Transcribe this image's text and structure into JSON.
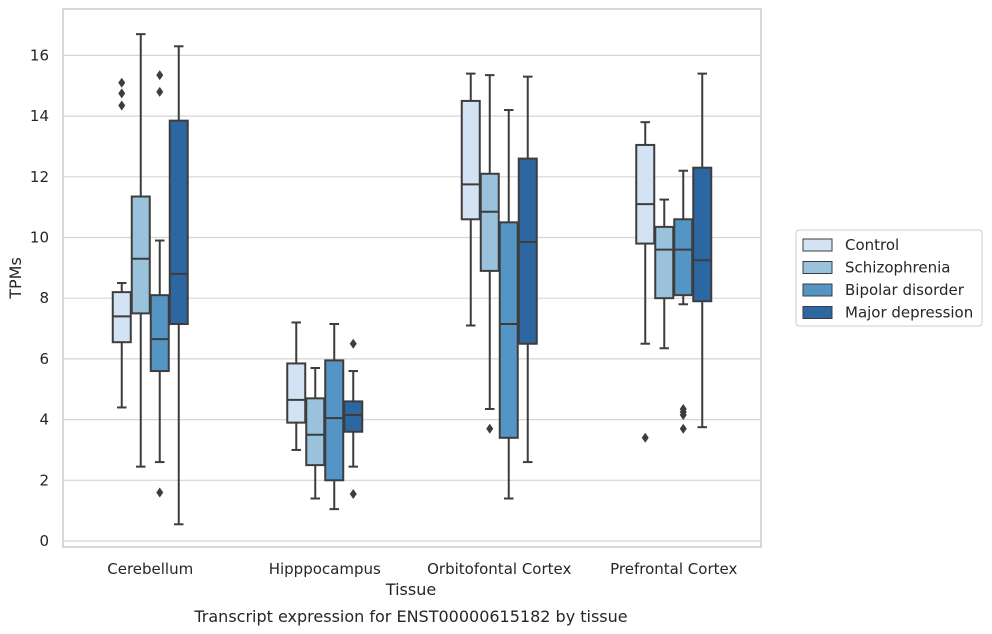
{
  "caption": "Transcript expression for ENST00000615182 by tissue",
  "chart_data": {
    "type": "boxplot",
    "title": "",
    "xlabel": "Tissue",
    "ylabel": "TPMs",
    "ylim": [
      -0.2,
      17.5
    ],
    "yticks": [
      0,
      2,
      4,
      6,
      8,
      10,
      12,
      14,
      16
    ],
    "grid": true,
    "legend_position": "right",
    "categories": [
      "Cerebellum",
      "Hipppocampus",
      "Orbitofontal Cortex",
      "Prefrontal Cortex"
    ],
    "series": [
      {
        "name": "Control",
        "color": "#d4e3f3",
        "boxes": [
          {
            "whislo": 4.4,
            "q1": 6.55,
            "med": 7.4,
            "q3": 8.2,
            "whishi": 8.5,
            "fliers": [
              14.35,
              14.75,
              15.1
            ]
          },
          {
            "whislo": 3.0,
            "q1": 3.9,
            "med": 4.65,
            "q3": 5.85,
            "whishi": 7.2,
            "fliers": []
          },
          {
            "whislo": 7.1,
            "q1": 10.6,
            "med": 11.75,
            "q3": 14.5,
            "whishi": 15.4,
            "fliers": []
          },
          {
            "whislo": 6.5,
            "q1": 9.8,
            "med": 11.1,
            "q3": 13.05,
            "whishi": 13.8,
            "fliers": [
              3.4
            ]
          }
        ]
      },
      {
        "name": "Schizophrenia",
        "color": "#9ac2dc",
        "boxes": [
          {
            "whislo": 2.45,
            "q1": 7.5,
            "med": 9.3,
            "q3": 11.35,
            "whishi": 16.7,
            "fliers": []
          },
          {
            "whislo": 1.4,
            "q1": 2.5,
            "med": 3.5,
            "q3": 4.7,
            "whishi": 5.7,
            "fliers": []
          },
          {
            "whislo": 4.35,
            "q1": 8.9,
            "med": 10.85,
            "q3": 12.1,
            "whishi": 15.35,
            "fliers": [
              3.7
            ]
          },
          {
            "whislo": 6.35,
            "q1": 8.0,
            "med": 9.6,
            "q3": 10.35,
            "whishi": 11.25,
            "fliers": []
          }
        ]
      },
      {
        "name": "Bipolar disorder",
        "color": "#5595c5",
        "boxes": [
          {
            "whislo": 2.6,
            "q1": 5.6,
            "med": 6.65,
            "q3": 8.1,
            "whishi": 9.9,
            "fliers": [
              1.6,
              14.8,
              15.35
            ]
          },
          {
            "whislo": 1.05,
            "q1": 2.0,
            "med": 4.05,
            "q3": 5.95,
            "whishi": 7.15,
            "fliers": []
          },
          {
            "whislo": 1.4,
            "q1": 3.4,
            "med": 7.15,
            "q3": 10.5,
            "whishi": 14.2,
            "fliers": []
          },
          {
            "whislo": 7.8,
            "q1": 8.1,
            "med": 9.6,
            "q3": 10.6,
            "whishi": 12.2,
            "fliers": [
              3.7,
              4.15,
              4.25,
              4.35
            ]
          }
        ]
      },
      {
        "name": "Major depression",
        "color": "#2d67a1",
        "boxes": [
          {
            "whislo": 0.55,
            "q1": 7.15,
            "med": 8.8,
            "q3": 13.85,
            "whishi": 16.3,
            "fliers": []
          },
          {
            "whislo": 2.45,
            "q1": 3.6,
            "med": 4.15,
            "q3": 4.6,
            "whishi": 5.6,
            "fliers": [
              1.55,
              6.5
            ]
          },
          {
            "whislo": 2.6,
            "q1": 6.5,
            "med": 9.85,
            "q3": 12.6,
            "whishi": 15.3,
            "fliers": []
          },
          {
            "whislo": 3.75,
            "q1": 7.9,
            "med": 9.25,
            "q3": 12.3,
            "whishi": 15.4,
            "fliers": []
          }
        ]
      }
    ]
  }
}
